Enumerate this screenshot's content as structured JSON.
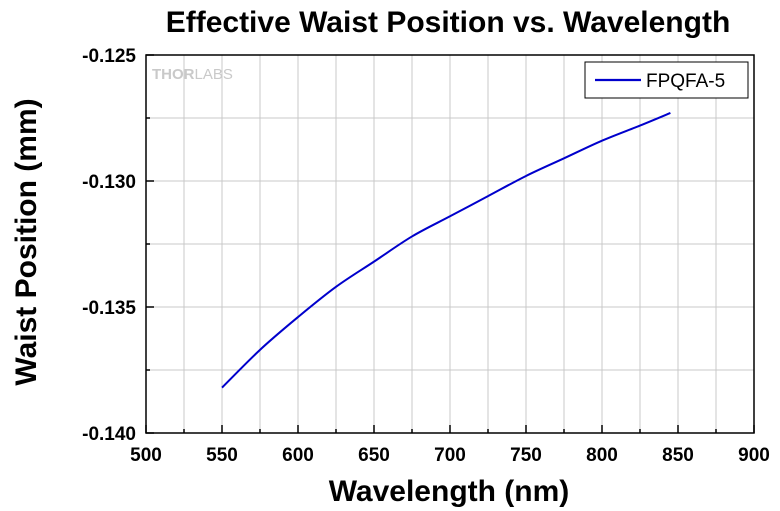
{
  "chart_data": {
    "type": "line",
    "title": "Effective Waist Position vs. Wavelength",
    "xlabel": "Wavelength (nm)",
    "ylabel": "Waist Position (mm)",
    "xlim": [
      500,
      900
    ],
    "ylim": [
      -0.14,
      -0.125
    ],
    "x_ticks": [
      "500",
      "550",
      "600",
      "650",
      "700",
      "750",
      "800",
      "850",
      "900"
    ],
    "y_ticks": [
      "-0.125",
      "-0.130",
      "-0.135",
      "-0.140"
    ],
    "grid": true,
    "legend_position": "top-right",
    "series": [
      {
        "name": "FPQFA-5",
        "color": "#0000cc",
        "x": [
          550,
          575,
          600,
          625,
          650,
          675,
          700,
          725,
          750,
          775,
          800,
          825,
          845
        ],
        "y": [
          -0.1382,
          -0.1367,
          -0.1354,
          -0.1342,
          -0.1332,
          -0.1322,
          -0.1314,
          -0.1306,
          -0.1298,
          -0.1291,
          -0.1284,
          -0.1278,
          -0.1273
        ]
      }
    ]
  },
  "watermark": {
    "part1": "THOR",
    "part2": "LABS"
  }
}
